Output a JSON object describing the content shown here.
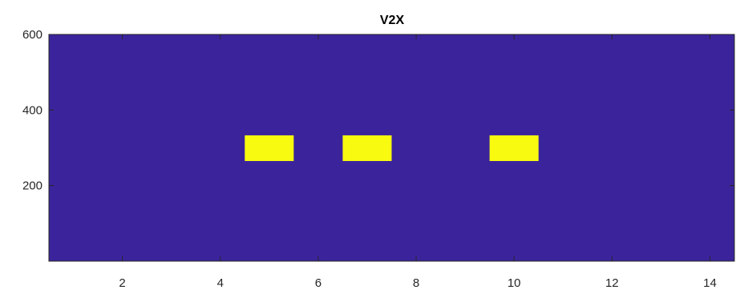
{
  "chart_data": {
    "type": "heatmap",
    "title": "V2X",
    "xlabel": "",
    "ylabel": "",
    "xlim": [
      0.5,
      14.5
    ],
    "ylim": [
      0,
      600
    ],
    "x_ticks": [
      2,
      4,
      6,
      8,
      10,
      12,
      14
    ],
    "y_ticks": [
      200,
      400,
      600
    ],
    "background_value": 0,
    "highlight_value": 1,
    "colors": {
      "low": "#3b249b",
      "high": "#f8fa0f",
      "axis": "#262626"
    },
    "cells": [
      {
        "x": [
          4.5,
          5.5
        ],
        "y": [
          265,
          333
        ],
        "value": 1
      },
      {
        "x": [
          6.5,
          7.5
        ],
        "y": [
          265,
          333
        ],
        "value": 1
      },
      {
        "x": [
          9.5,
          10.5
        ],
        "y": [
          265,
          333
        ],
        "value": 1
      }
    ],
    "grid": false,
    "legend": "none"
  }
}
